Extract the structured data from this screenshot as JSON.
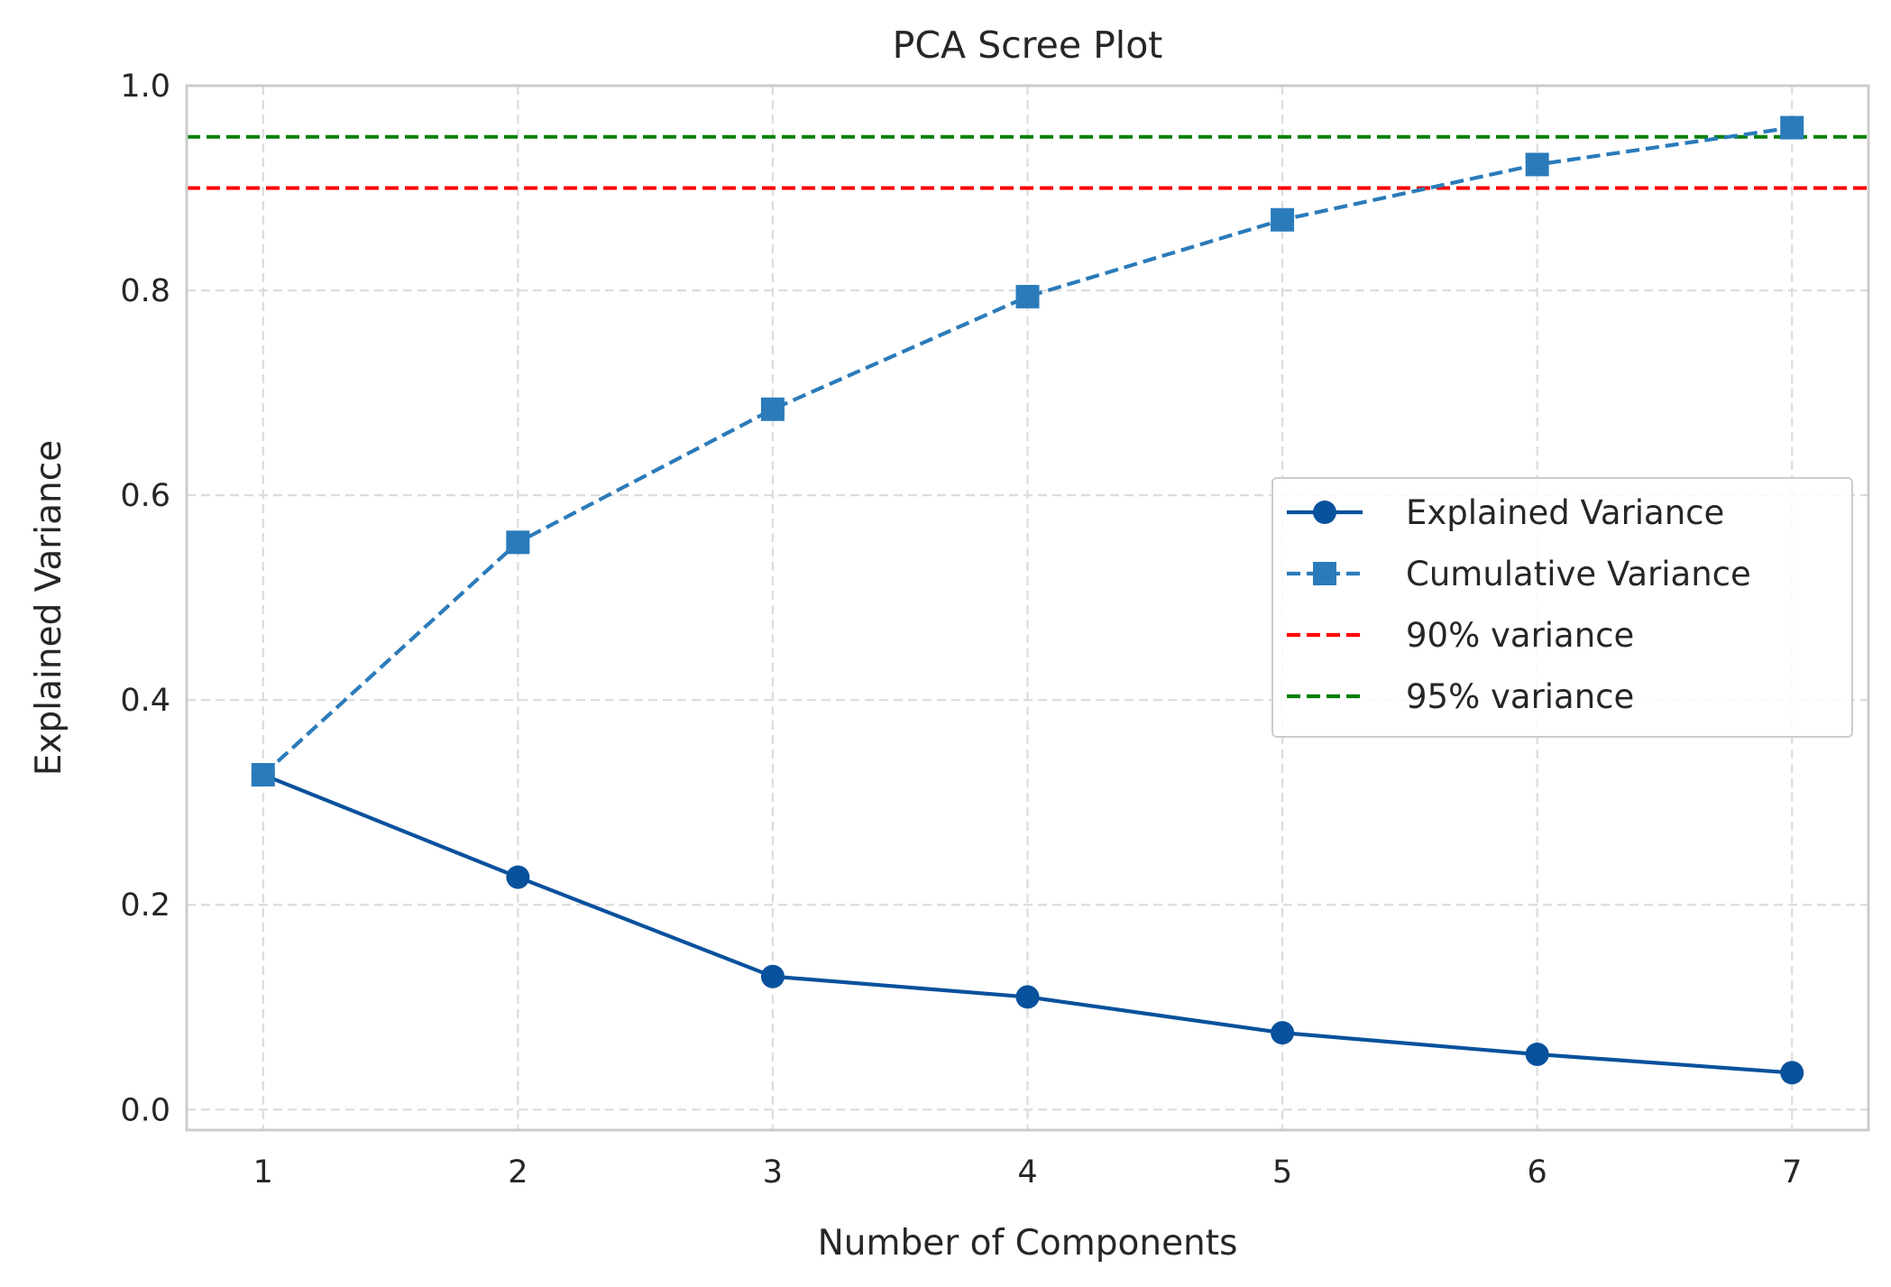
{
  "chart_data": {
    "type": "line",
    "title": "PCA Scree Plot",
    "xlabel": "Number of Components",
    "ylabel": "Explained Variance",
    "x": [
      1,
      2,
      3,
      4,
      5,
      6,
      7
    ],
    "xlim": [
      0.7,
      7.3
    ],
    "ylim": [
      -0.02,
      1.0
    ],
    "xticks": [
      1,
      2,
      3,
      4,
      5,
      6,
      7
    ],
    "yticks": [
      0.0,
      0.2,
      0.4,
      0.6,
      0.8,
      1.0
    ],
    "ytick_labels": [
      "0.0",
      "0.2",
      "0.4",
      "0.6",
      "0.8",
      "1.0"
    ],
    "grid": true,
    "legend_position": "center-right",
    "series": [
      {
        "name": "Explained Variance",
        "values": [
          0.327,
          0.227,
          0.13,
          0.11,
          0.075,
          0.054,
          0.036
        ],
        "color": "#08519c",
        "linestyle": "solid",
        "marker": "circle"
      },
      {
        "name": "Cumulative Variance",
        "values": [
          0.327,
          0.554,
          0.684,
          0.794,
          0.869,
          0.923,
          0.959
        ],
        "color": "#2b7bba",
        "linestyle": "dashed",
        "marker": "square"
      }
    ],
    "reference_lines": [
      {
        "name": "90% variance",
        "y": 0.9,
        "color": "#ff0000",
        "linestyle": "dashed"
      },
      {
        "name": "95% variance",
        "y": 0.95,
        "color": "#008000",
        "linestyle": "dashed"
      }
    ]
  }
}
